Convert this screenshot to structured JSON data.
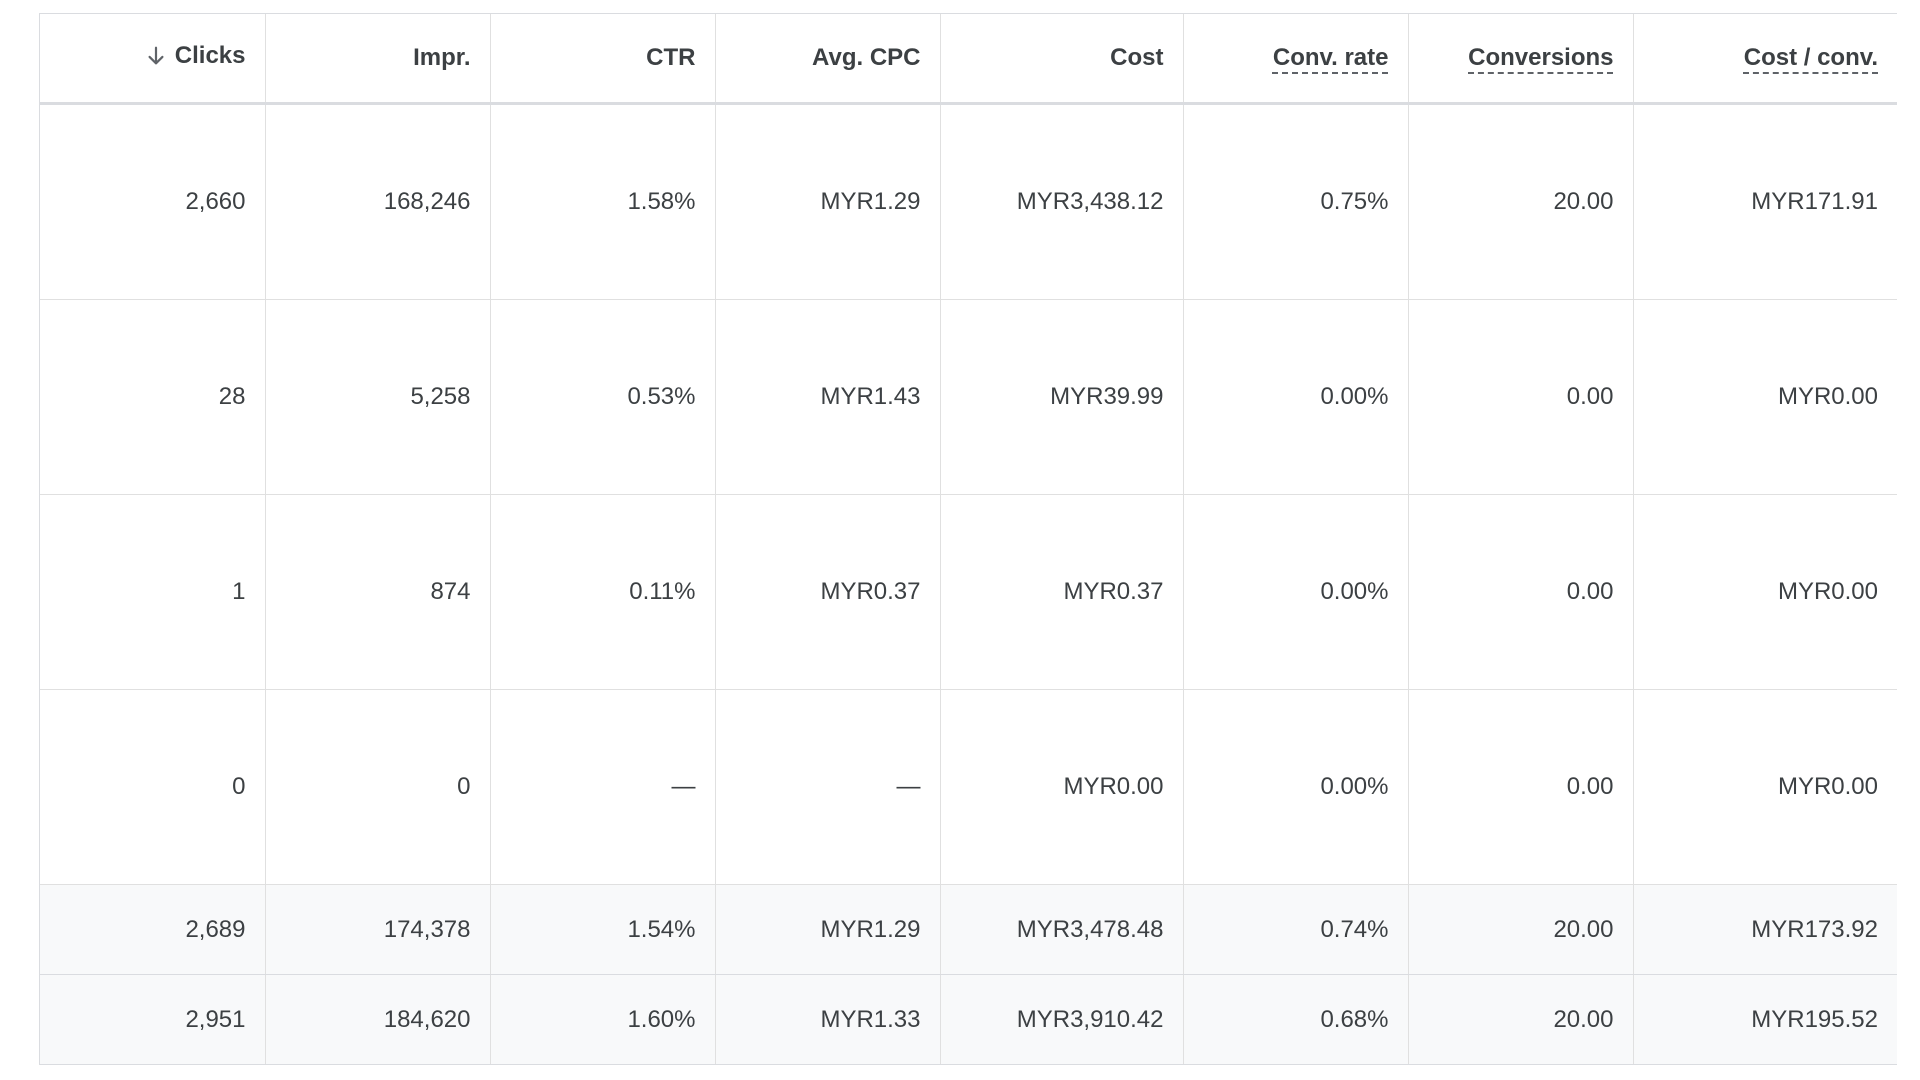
{
  "table": {
    "sort": {
      "column": "Clicks",
      "direction": "descending"
    },
    "columns": [
      {
        "label": "Clicks",
        "dotted": false,
        "sorted": true
      },
      {
        "label": "Impr.",
        "dotted": false,
        "sorted": false
      },
      {
        "label": "CTR",
        "dotted": false,
        "sorted": false
      },
      {
        "label": "Avg. CPC",
        "dotted": false,
        "sorted": false
      },
      {
        "label": "Cost",
        "dotted": false,
        "sorted": false
      },
      {
        "label": "Conv. rate",
        "dotted": true,
        "sorted": false
      },
      {
        "label": "Conversions",
        "dotted": true,
        "sorted": false
      },
      {
        "label": "Cost / conv.",
        "dotted": true,
        "sorted": false
      }
    ],
    "rows": [
      [
        "2,660",
        "168,246",
        "1.58%",
        "MYR1.29",
        "MYR3,438.12",
        "0.75%",
        "20.00",
        "MYR171.91"
      ],
      [
        "28",
        "5,258",
        "0.53%",
        "MYR1.43",
        "MYR39.99",
        "0.00%",
        "0.00",
        "MYR0.00"
      ],
      [
        "1",
        "874",
        "0.11%",
        "MYR0.37",
        "MYR0.37",
        "0.00%",
        "0.00",
        "MYR0.00"
      ],
      [
        "0",
        "0",
        "—",
        "—",
        "MYR0.00",
        "0.00%",
        "0.00",
        "MYR0.00"
      ]
    ],
    "totals": [
      [
        "2,689",
        "174,378",
        "1.54%",
        "MYR1.29",
        "MYR3,478.48",
        "0.74%",
        "20.00",
        "MYR173.92"
      ],
      [
        "2,951",
        "184,620",
        "1.60%",
        "MYR1.33",
        "MYR3,910.42",
        "0.68%",
        "20.00",
        "MYR195.52"
      ]
    ]
  },
  "icons": {
    "sort": "arrow-down-icon"
  },
  "colors": {
    "text": "#3c4043",
    "border": "#e0e0e0",
    "total_bg": "#f8f9fa"
  }
}
